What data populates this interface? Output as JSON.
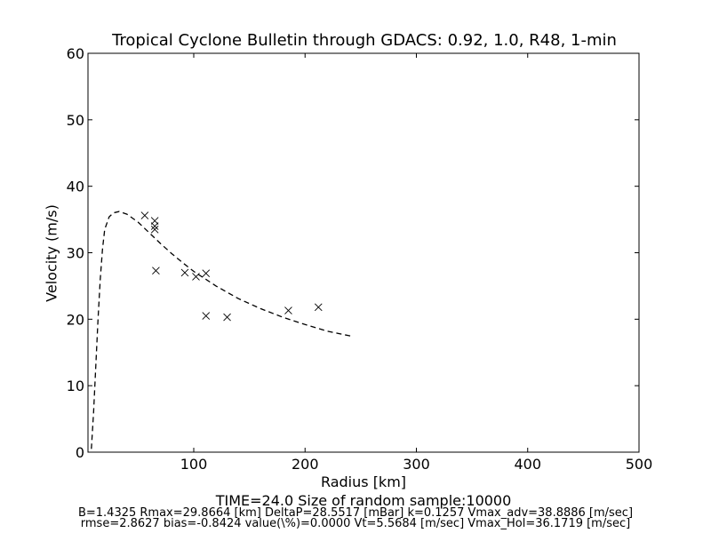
{
  "chart_data": {
    "type": "scatter",
    "title": "Tropical Cyclone Bulletin through GDACS: 0.92, 1.0, R48, 1-min",
    "xlabel": "Radius [km]",
    "ylabel": "Velocity (m/s)",
    "xlim": [
      5,
      500
    ],
    "ylim": [
      0,
      60
    ],
    "x_ticks": [
      100,
      200,
      300,
      400,
      500
    ],
    "y_ticks": [
      0,
      10,
      20,
      30,
      40,
      50,
      60
    ],
    "grid": false,
    "series": [
      {
        "kind": "scatter",
        "marker": "x",
        "points": [
          [
            56,
            35.6
          ],
          [
            65,
            34.8
          ],
          [
            65,
            34.0
          ],
          [
            65,
            33.5
          ],
          [
            66,
            27.3
          ],
          [
            92,
            27.0
          ],
          [
            102,
            26.4
          ],
          [
            111,
            26.9
          ],
          [
            111,
            20.5
          ],
          [
            130,
            20.3
          ],
          [
            185,
            21.3
          ],
          [
            212,
            21.8
          ]
        ]
      },
      {
        "kind": "line",
        "style": "dashed",
        "points": [
          [
            8,
            0.5
          ],
          [
            10,
            6
          ],
          [
            12,
            13
          ],
          [
            14,
            20
          ],
          [
            16,
            26
          ],
          [
            18,
            30.5
          ],
          [
            20,
            33.5
          ],
          [
            24,
            35.4
          ],
          [
            28,
            36.0
          ],
          [
            33,
            36.2
          ],
          [
            40,
            35.8
          ],
          [
            50,
            34.6
          ],
          [
            60,
            33.0
          ],
          [
            70,
            31.4
          ],
          [
            80,
            29.9
          ],
          [
            90,
            28.5
          ],
          [
            100,
            27.2
          ],
          [
            120,
            25.0
          ],
          [
            140,
            23.1
          ],
          [
            160,
            21.6
          ],
          [
            180,
            20.3
          ],
          [
            200,
            19.2
          ],
          [
            220,
            18.2
          ],
          [
            243,
            17.4
          ]
        ]
      }
    ]
  },
  "footer": {
    "line1": "TIME=24.0      Size of random sample:10000",
    "line2": "B=1.4325 Rmax=29.8664 [km]  DeltaP=28.5517 [mBar] k=0.1257 Vmax_adv=38.8886 [m/sec]",
    "line3": "rmse=2.8627 bias=-0.8424 value(\\%)=0.0000 Vt=5.5684 [m/sec] Vmax_Hol=36.1719 [m/sec]"
  }
}
